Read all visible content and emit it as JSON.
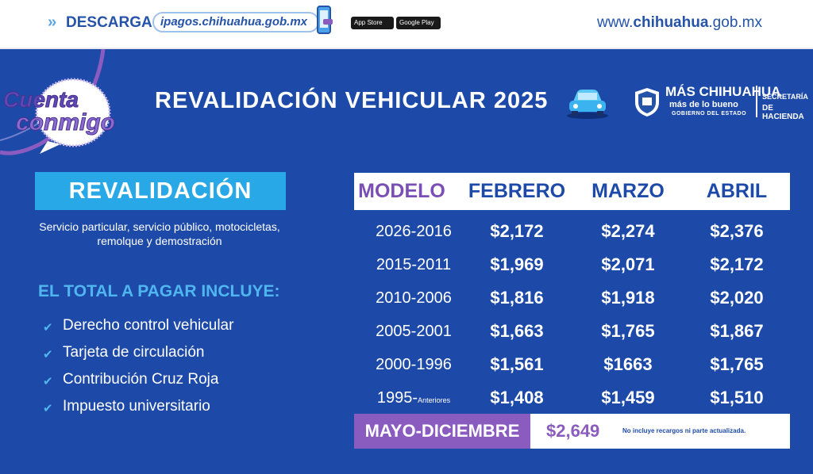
{
  "topbar": {
    "download_label": "DESCARGA",
    "download_url": "ipagos.chihuahua.gob.mx",
    "app_store_label": "App Store",
    "google_play_label": "Google Play",
    "site_prefix": "www.",
    "site_bold": "chihuahua",
    "site_suffix": ".gob.mx"
  },
  "header": {
    "logo_line1": "Cuenta",
    "logo_line2": "conmigo",
    "title": "REVALIDACIÓN VEHICULAR 2025",
    "brand_line1": "MÁS CHIHUAHUA",
    "brand_line2": "más de lo bueno",
    "brand_line3": "GOBIERNO DEL ESTADO",
    "secretaria_line1": "SECRETARÍA",
    "secretaria_line2": "DE HACIENDA"
  },
  "left": {
    "box_title": "REVALIDACIÓN",
    "services": "Servicio particular, servicio público, motocicletas, remolque y demostración",
    "includes_title": "EL TOTAL A PAGAR INCLUYE:",
    "items": [
      "Derecho control vehicular",
      "Tarjeta de circulación",
      "Contribución Cruz Roja",
      "Impuesto universitario"
    ]
  },
  "table": {
    "headers": [
      "MODELO",
      "FEBRERO",
      "MARZO",
      "ABRIL"
    ],
    "rows": [
      {
        "model": "2026-2016",
        "sup": "",
        "feb": "$2,172",
        "mar": "$2,274",
        "abr": "$2,376"
      },
      {
        "model": "2015-2011",
        "sup": "",
        "feb": "$1,969",
        "mar": "$2,071",
        "abr": "$2,172"
      },
      {
        "model": "2010-2006",
        "sup": "",
        "feb": "$1,816",
        "mar": "$1,918",
        "abr": "$2,020"
      },
      {
        "model": "2005-2001",
        "sup": "",
        "feb": "$1,663",
        "mar": "$1,765",
        "abr": "$1,867"
      },
      {
        "model": "2000-1996",
        "sup": "",
        "feb": "$1,561",
        "mar": "$1663",
        "abr": "$1,765"
      },
      {
        "model": "1995-",
        "sup": "Anteriores",
        "feb": "$1,408",
        "mar": "$1,459",
        "abr": "$1,510"
      }
    ],
    "mayo_label": "MAYO-DICIEMBRE",
    "mayo_price": "$2,649",
    "mayo_note": "No incluye recargos ni parte actualizada."
  },
  "colors": {
    "background": "#1d4aa8",
    "cyan": "#28a8e6",
    "purple": "#8b5cbf"
  }
}
